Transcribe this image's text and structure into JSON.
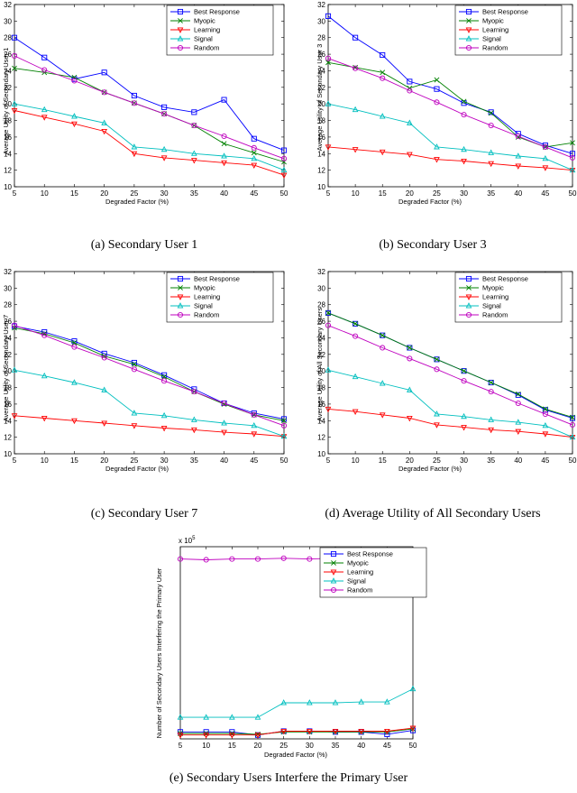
{
  "colors": {
    "Best Response": "#0000ff",
    "Myopic": "#008000",
    "Learning": "#ff0000",
    "Signal": "#00bfbf",
    "Random": "#bf00bf"
  },
  "chart_data": [
    {
      "type": "line",
      "caption": "(a)  Secondary User 1",
      "xlabel": "Degraded Factor (%)",
      "ylabel": "Average Utility of Secondary User 1",
      "xlim": [
        5,
        50
      ],
      "ylim": [
        10,
        32
      ],
      "x": [
        5,
        10,
        15,
        20,
        25,
        30,
        35,
        40,
        45,
        50
      ],
      "xticks": [
        "5",
        "10",
        "15",
        "20",
        "25",
        "30",
        "35",
        "40",
        "45",
        "50"
      ],
      "yticks": [
        "10",
        "12",
        "14",
        "16",
        "18",
        "20",
        "22",
        "24",
        "26",
        "28",
        "30",
        "32"
      ],
      "legend": "top-right",
      "series": [
        {
          "name": "Best Response",
          "marker": "square",
          "values": [
            28.0,
            25.6,
            23.0,
            23.8,
            21.0,
            19.6,
            19.0,
            20.5,
            15.8,
            14.4
          ]
        },
        {
          "name": "Myopic",
          "marker": "x",
          "values": [
            24.3,
            23.8,
            23.2,
            21.4,
            20.1,
            18.8,
            17.4,
            15.2,
            14.1,
            13.0
          ]
        },
        {
          "name": "Learning",
          "marker": "triangle-down",
          "values": [
            19.2,
            18.4,
            17.6,
            16.7,
            14.0,
            13.5,
            13.2,
            12.9,
            12.6,
            11.4
          ]
        },
        {
          "name": "Signal",
          "marker": "triangle-up",
          "values": [
            20.0,
            19.3,
            18.5,
            17.7,
            14.8,
            14.5,
            14.0,
            13.7,
            13.4,
            12.0
          ]
        },
        {
          "name": "Random",
          "marker": "circle",
          "values": [
            25.8,
            24.1,
            22.8,
            21.4,
            20.1,
            18.8,
            17.4,
            16.1,
            14.7,
            13.4
          ]
        }
      ]
    },
    {
      "type": "line",
      "caption": "(b)  Secondary User 3",
      "xlabel": "Degraded Factor (%)",
      "ylabel": "Average Utility of Secondary User 3",
      "xlim": [
        5,
        50
      ],
      "ylim": [
        10,
        32
      ],
      "x": [
        5,
        10,
        15,
        20,
        25,
        30,
        35,
        40,
        45,
        50
      ],
      "xticks": [
        "5",
        "10",
        "15",
        "20",
        "25",
        "30",
        "35",
        "40",
        "45",
        "50"
      ],
      "yticks": [
        "10",
        "12",
        "14",
        "16",
        "18",
        "20",
        "22",
        "24",
        "26",
        "28",
        "30",
        "32"
      ],
      "legend": "top-right",
      "series": [
        {
          "name": "Best Response",
          "marker": "square",
          "values": [
            30.6,
            28.0,
            25.9,
            22.7,
            21.8,
            20.1,
            19.0,
            16.4,
            15.0,
            14.0
          ]
        },
        {
          "name": "Myopic",
          "marker": "x",
          "values": [
            25.0,
            24.4,
            23.8,
            21.9,
            22.9,
            20.3,
            18.9,
            16.0,
            14.8,
            15.3
          ]
        },
        {
          "name": "Learning",
          "marker": "triangle-down",
          "values": [
            14.8,
            14.5,
            14.2,
            13.9,
            13.3,
            13.1,
            12.8,
            12.5,
            12.3,
            12.0
          ]
        },
        {
          "name": "Signal",
          "marker": "triangle-up",
          "values": [
            20.0,
            19.3,
            18.5,
            17.7,
            14.8,
            14.5,
            14.1,
            13.7,
            13.4,
            12.0
          ]
        },
        {
          "name": "Random",
          "marker": "circle",
          "values": [
            25.5,
            24.3,
            23.1,
            21.6,
            20.2,
            18.7,
            17.4,
            16.1,
            14.8,
            13.5
          ]
        }
      ]
    },
    {
      "type": "line",
      "caption": "(c)  Secondary User 7",
      "xlabel": "Degraded Factor (%)",
      "ylabel": "Average Utility of Secondary User 7",
      "xlim": [
        5,
        50
      ],
      "ylim": [
        10,
        32
      ],
      "x": [
        5,
        10,
        15,
        20,
        25,
        30,
        35,
        40,
        45,
        50
      ],
      "xticks": [
        "5",
        "10",
        "15",
        "20",
        "25",
        "30",
        "35",
        "40",
        "45",
        "50"
      ],
      "yticks": [
        "10",
        "12",
        "14",
        "16",
        "18",
        "20",
        "22",
        "24",
        "26",
        "28",
        "30",
        "32"
      ],
      "legend": "top-right",
      "series": [
        {
          "name": "Best Response",
          "marker": "square",
          "values": [
            25.4,
            24.7,
            23.6,
            22.1,
            21.0,
            19.5,
            17.8,
            16.1,
            14.9,
            14.2
          ]
        },
        {
          "name": "Myopic",
          "marker": "x",
          "values": [
            25.2,
            24.5,
            23.4,
            21.8,
            20.8,
            19.3,
            17.5,
            16.0,
            14.7,
            14.0
          ]
        },
        {
          "name": "Learning",
          "marker": "triangle-down",
          "values": [
            14.6,
            14.3,
            14.0,
            13.7,
            13.4,
            13.1,
            12.9,
            12.6,
            12.4,
            12.1
          ]
        },
        {
          "name": "Signal",
          "marker": "triangle-up",
          "values": [
            20.1,
            19.4,
            18.6,
            17.7,
            14.9,
            14.6,
            14.1,
            13.7,
            13.4,
            12.1
          ]
        },
        {
          "name": "Random",
          "marker": "circle",
          "values": [
            25.5,
            24.3,
            22.9,
            21.6,
            20.2,
            18.8,
            17.5,
            16.1,
            14.7,
            13.4
          ]
        }
      ]
    },
    {
      "type": "line",
      "caption": "(d)  Average Utility of All Secondary Users",
      "xlabel": "Degraded Factor (%)",
      "ylabel": "Average Utility of All Secondary Users",
      "xlim": [
        5,
        50
      ],
      "ylim": [
        10,
        32
      ],
      "x": [
        5,
        10,
        15,
        20,
        25,
        30,
        35,
        40,
        45,
        50
      ],
      "xticks": [
        "5",
        "10",
        "15",
        "20",
        "25",
        "30",
        "35",
        "40",
        "45",
        "50"
      ],
      "yticks": [
        "10",
        "12",
        "14",
        "16",
        "18",
        "20",
        "22",
        "24",
        "26",
        "28",
        "30",
        "32"
      ],
      "legend": "top-right",
      "series": [
        {
          "name": "Best Response",
          "marker": "square",
          "values": [
            27.0,
            25.7,
            24.3,
            22.8,
            21.4,
            20.0,
            18.6,
            17.1,
            15.3,
            14.3
          ]
        },
        {
          "name": "Myopic",
          "marker": "x",
          "values": [
            27.0,
            25.7,
            24.3,
            22.8,
            21.4,
            20.0,
            18.6,
            17.2,
            15.4,
            14.4
          ]
        },
        {
          "name": "Learning",
          "marker": "triangle-down",
          "values": [
            15.4,
            15.1,
            14.7,
            14.3,
            13.5,
            13.2,
            12.9,
            12.7,
            12.4,
            12.0
          ]
        },
        {
          "name": "Signal",
          "marker": "triangle-up",
          "values": [
            20.1,
            19.3,
            18.5,
            17.7,
            14.8,
            14.5,
            14.1,
            13.8,
            13.4,
            12.0
          ]
        },
        {
          "name": "Random",
          "marker": "circle",
          "values": [
            25.5,
            24.2,
            22.8,
            21.5,
            20.2,
            18.8,
            17.5,
            16.1,
            14.8,
            13.5
          ]
        }
      ]
    },
    {
      "type": "line",
      "caption": "(e)  Secondary Users Interfere the Primary User",
      "xlabel": "Degraded Factor (%)",
      "ylabel": "Number of Secondary Users Interfering the Primary User",
      "exponent_label": "x 10",
      "exponent_power": "5",
      "xlim": [
        5,
        50
      ],
      "ylim": [
        0,
        2.5
      ],
      "x": [
        5,
        10,
        15,
        20,
        25,
        30,
        35,
        40,
        45,
        50
      ],
      "xticks": [
        "5",
        "10",
        "15",
        "20",
        "25",
        "30",
        "35",
        "40",
        "45",
        "50"
      ],
      "yticks": [],
      "legend": "top-right",
      "series": [
        {
          "name": "Best Response",
          "marker": "square",
          "values": [
            0.09,
            0.09,
            0.09,
            0.05,
            0.1,
            0.1,
            0.09,
            0.09,
            0.06,
            0.11
          ]
        },
        {
          "name": "Myopic",
          "marker": "x",
          "values": [
            0.07,
            0.07,
            0.07,
            0.06,
            0.09,
            0.09,
            0.09,
            0.09,
            0.09,
            0.13
          ]
        },
        {
          "name": "Learning",
          "marker": "triangle-down",
          "values": [
            0.05,
            0.05,
            0.05,
            0.05,
            0.1,
            0.1,
            0.1,
            0.1,
            0.1,
            0.14
          ]
        },
        {
          "name": "Signal",
          "marker": "triangle-up",
          "values": [
            0.28,
            0.28,
            0.28,
            0.28,
            0.47,
            0.47,
            0.47,
            0.48,
            0.48,
            0.65
          ]
        },
        {
          "name": "Random",
          "marker": "circle",
          "values": [
            2.34,
            2.33,
            2.34,
            2.34,
            2.35,
            2.34,
            2.35,
            2.35,
            2.34,
            2.34
          ]
        }
      ]
    }
  ]
}
